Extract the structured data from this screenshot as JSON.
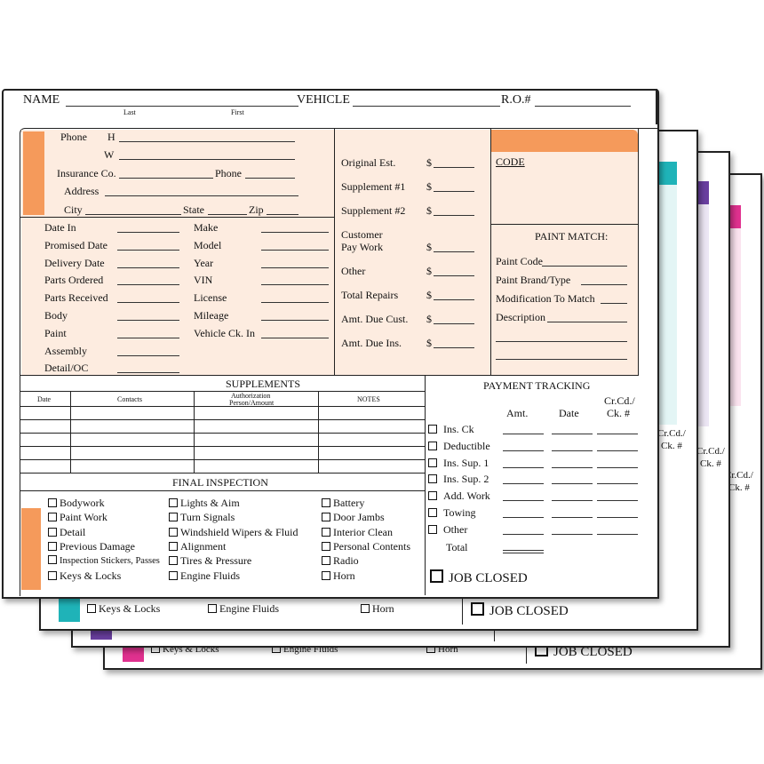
{
  "header": {
    "name_label": "NAME",
    "last": "Last",
    "first": "First",
    "vehicle_label": "VEHICLE",
    "ro_label": "R.O.#"
  },
  "contact": {
    "phone": "Phone",
    "h": "H",
    "w": "W",
    "insurance": "Insurance Co.",
    "phone2": "Phone",
    "address": "Address",
    "city": "City",
    "state": "State",
    "zip": "Zip"
  },
  "dates_left": [
    "Date In",
    "Promised Date",
    "Delivery Date",
    "Parts Ordered",
    "Parts Received",
    "Body",
    "Paint",
    "Assembly",
    "Detail/OC"
  ],
  "vehicle_fields": [
    "Make",
    "Model",
    "Year",
    "VIN",
    "License",
    "Mileage",
    "Vehicle Ck. In"
  ],
  "estimate": {
    "items": [
      "Original Est.",
      "Supplement #1",
      "Supplement #2",
      "Pay Work",
      "Other",
      "Total Repairs",
      "Amt. Due Cust.",
      "Amt. Due Ins."
    ],
    "customer": "Customer",
    "dollar": "$"
  },
  "code_label": "CODE",
  "paint_match": {
    "title": "PAINT MATCH:",
    "fields": [
      "Paint Code",
      "Paint Brand/Type",
      "Modification To Match",
      "Description"
    ]
  },
  "supplements": {
    "title": "SUPPLEMENTS",
    "cols": [
      "Date",
      "Contacts",
      "Authorization",
      "Person/Amount",
      "NOTES"
    ]
  },
  "final_inspection": {
    "title": "FINAL INSPECTION",
    "col1": [
      "Bodywork",
      "Paint Work",
      "Detail",
      "Previous Damage",
      "Inspection Stickers, Passes",
      "Keys & Locks"
    ],
    "col2": [
      "Lights & Aim",
      "Turn Signals",
      "Windshield Wipers & Fluid",
      "Alignment",
      "Tires & Pressure",
      "Engine Fluids"
    ],
    "col3": [
      "Battery",
      "Door Jambs",
      "Interior Clean",
      "Personal Contents",
      "Radio",
      "Horn"
    ]
  },
  "payment": {
    "title": "PAYMENT TRACKING",
    "amt": "Amt.",
    "date": "Date",
    "crcd": "Cr.Cd./",
    "ck": "Ck. #",
    "rows": [
      "Ins. Ck",
      "Deductible",
      "Ins. Sup. 1",
      "Ins. Sup. 2",
      "Add. Work",
      "Towing",
      "Other"
    ],
    "total": "Total",
    "job_closed": "JOB CLOSED"
  },
  "back_sheets": {
    "keys": "Keys & Locks",
    "engine": "Engine Fluids",
    "horn": "Horn",
    "job_closed": "JOB CLOSED",
    "crcd_partial": "Cr.Cd./",
    "ck_partial": "Ck. #",
    "tab_colors": [
      "#e0318f",
      "#6a3fa0",
      "#1fb3b8"
    ]
  },
  "colors": {
    "peach": "#fdece0",
    "orange": "#f59a5b",
    "teal": "#1fb3b8",
    "purple": "#6a3fa0",
    "magenta": "#e0318f"
  }
}
